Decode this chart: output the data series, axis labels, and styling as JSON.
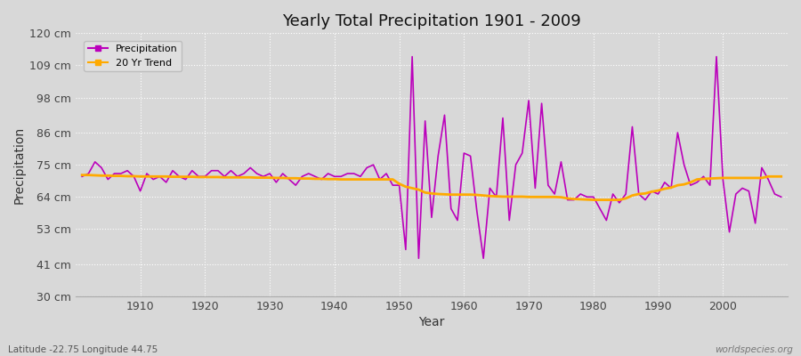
{
  "title": "Yearly Total Precipitation 1901 - 2009",
  "xlabel": "Year",
  "ylabel": "Precipitation",
  "subtitle": "Latitude -22.75 Longitude 44.75",
  "watermark": "worldspecies.org",
  "ylim": [
    30,
    120
  ],
  "yticks": [
    30,
    41,
    53,
    64,
    75,
    86,
    98,
    109,
    120
  ],
  "ytick_labels": [
    "30 cm",
    "41 cm",
    "53 cm",
    "64 cm",
    "75 cm",
    "86 cm",
    "98 cm",
    "109 cm",
    "120 cm"
  ],
  "xlim": [
    1901,
    2009
  ],
  "xticks": [
    1910,
    1920,
    1930,
    1940,
    1950,
    1960,
    1970,
    1980,
    1990,
    2000
  ],
  "precip_color": "#bb00bb",
  "trend_color": "#ffaa00",
  "bg_color": "#d8d8d8",
  "plot_bg_color": "#d8d8d8",
  "grid_color": "#ffffff",
  "years": [
    1901,
    1902,
    1903,
    1904,
    1905,
    1906,
    1907,
    1908,
    1909,
    1910,
    1911,
    1912,
    1913,
    1914,
    1915,
    1916,
    1917,
    1918,
    1919,
    1920,
    1921,
    1922,
    1923,
    1924,
    1925,
    1926,
    1927,
    1928,
    1929,
    1930,
    1931,
    1932,
    1933,
    1934,
    1935,
    1936,
    1937,
    1938,
    1939,
    1940,
    1941,
    1942,
    1943,
    1944,
    1945,
    1946,
    1947,
    1948,
    1949,
    1950,
    1951,
    1952,
    1953,
    1954,
    1955,
    1956,
    1957,
    1958,
    1959,
    1960,
    1961,
    1962,
    1963,
    1964,
    1965,
    1966,
    1967,
    1968,
    1969,
    1970,
    1971,
    1972,
    1973,
    1974,
    1975,
    1976,
    1977,
    1978,
    1979,
    1980,
    1981,
    1982,
    1983,
    1984,
    1985,
    1986,
    1987,
    1988,
    1989,
    1990,
    1991,
    1992,
    1993,
    1994,
    1995,
    1996,
    1997,
    1998,
    1999,
    2000,
    2001,
    2002,
    2003,
    2004,
    2005,
    2006,
    2007,
    2008,
    2009
  ],
  "precipitation": [
    71,
    72,
    76,
    74,
    70,
    72,
    72,
    73,
    71,
    66,
    72,
    70,
    71,
    69,
    73,
    71,
    70,
    73,
    71,
    71,
    73,
    73,
    71,
    73,
    71,
    72,
    74,
    72,
    71,
    72,
    69,
    72,
    70,
    68,
    71,
    72,
    71,
    70,
    72,
    71,
    71,
    72,
    72,
    71,
    74,
    75,
    70,
    72,
    68,
    68,
    46,
    112,
    43,
    90,
    57,
    78,
    92,
    60,
    56,
    79,
    78,
    59,
    43,
    67,
    64,
    91,
    56,
    75,
    79,
    97,
    67,
    96,
    68,
    65,
    76,
    63,
    63,
    65,
    64,
    64,
    60,
    56,
    65,
    62,
    65,
    88,
    65,
    63,
    66,
    65,
    69,
    67,
    86,
    75,
    68,
    69,
    71,
    68,
    112,
    70,
    52,
    65,
    67,
    66,
    55,
    74,
    70,
    65,
    64
  ],
  "trend": [
    71.5,
    71.5,
    71.4,
    71.3,
    71.3,
    71.2,
    71.2,
    71.1,
    71.1,
    71.0,
    71.0,
    71.0,
    71.0,
    71.0,
    70.9,
    70.9,
    70.9,
    70.9,
    70.8,
    70.8,
    70.8,
    70.8,
    70.7,
    70.7,
    70.7,
    70.7,
    70.7,
    70.6,
    70.6,
    70.6,
    70.5,
    70.5,
    70.4,
    70.4,
    70.3,
    70.3,
    70.2,
    70.2,
    70.1,
    70.1,
    70.0,
    70.0,
    70.0,
    70.0,
    70.0,
    70.0,
    70.0,
    70.0,
    70.0,
    68.5,
    67.5,
    67.0,
    66.5,
    65.5,
    65.2,
    65.0,
    64.9,
    64.8,
    64.8,
    64.8,
    64.8,
    64.7,
    64.5,
    64.3,
    64.2,
    64.1,
    64.1,
    64.1,
    64.1,
    64.0,
    64.0,
    64.0,
    64.0,
    64.0,
    63.9,
    63.5,
    63.3,
    63.2,
    63.1,
    63.0,
    63.0,
    63.0,
    63.0,
    63.0,
    63.5,
    64.5,
    65.0,
    65.2,
    65.8,
    66.2,
    66.8,
    67.2,
    68.0,
    68.3,
    69.0,
    70.0,
    70.2,
    70.3,
    70.4,
    70.5,
    70.5,
    70.5,
    70.5,
    70.5,
    70.5,
    70.5,
    71.0,
    71.0,
    71.0
  ]
}
